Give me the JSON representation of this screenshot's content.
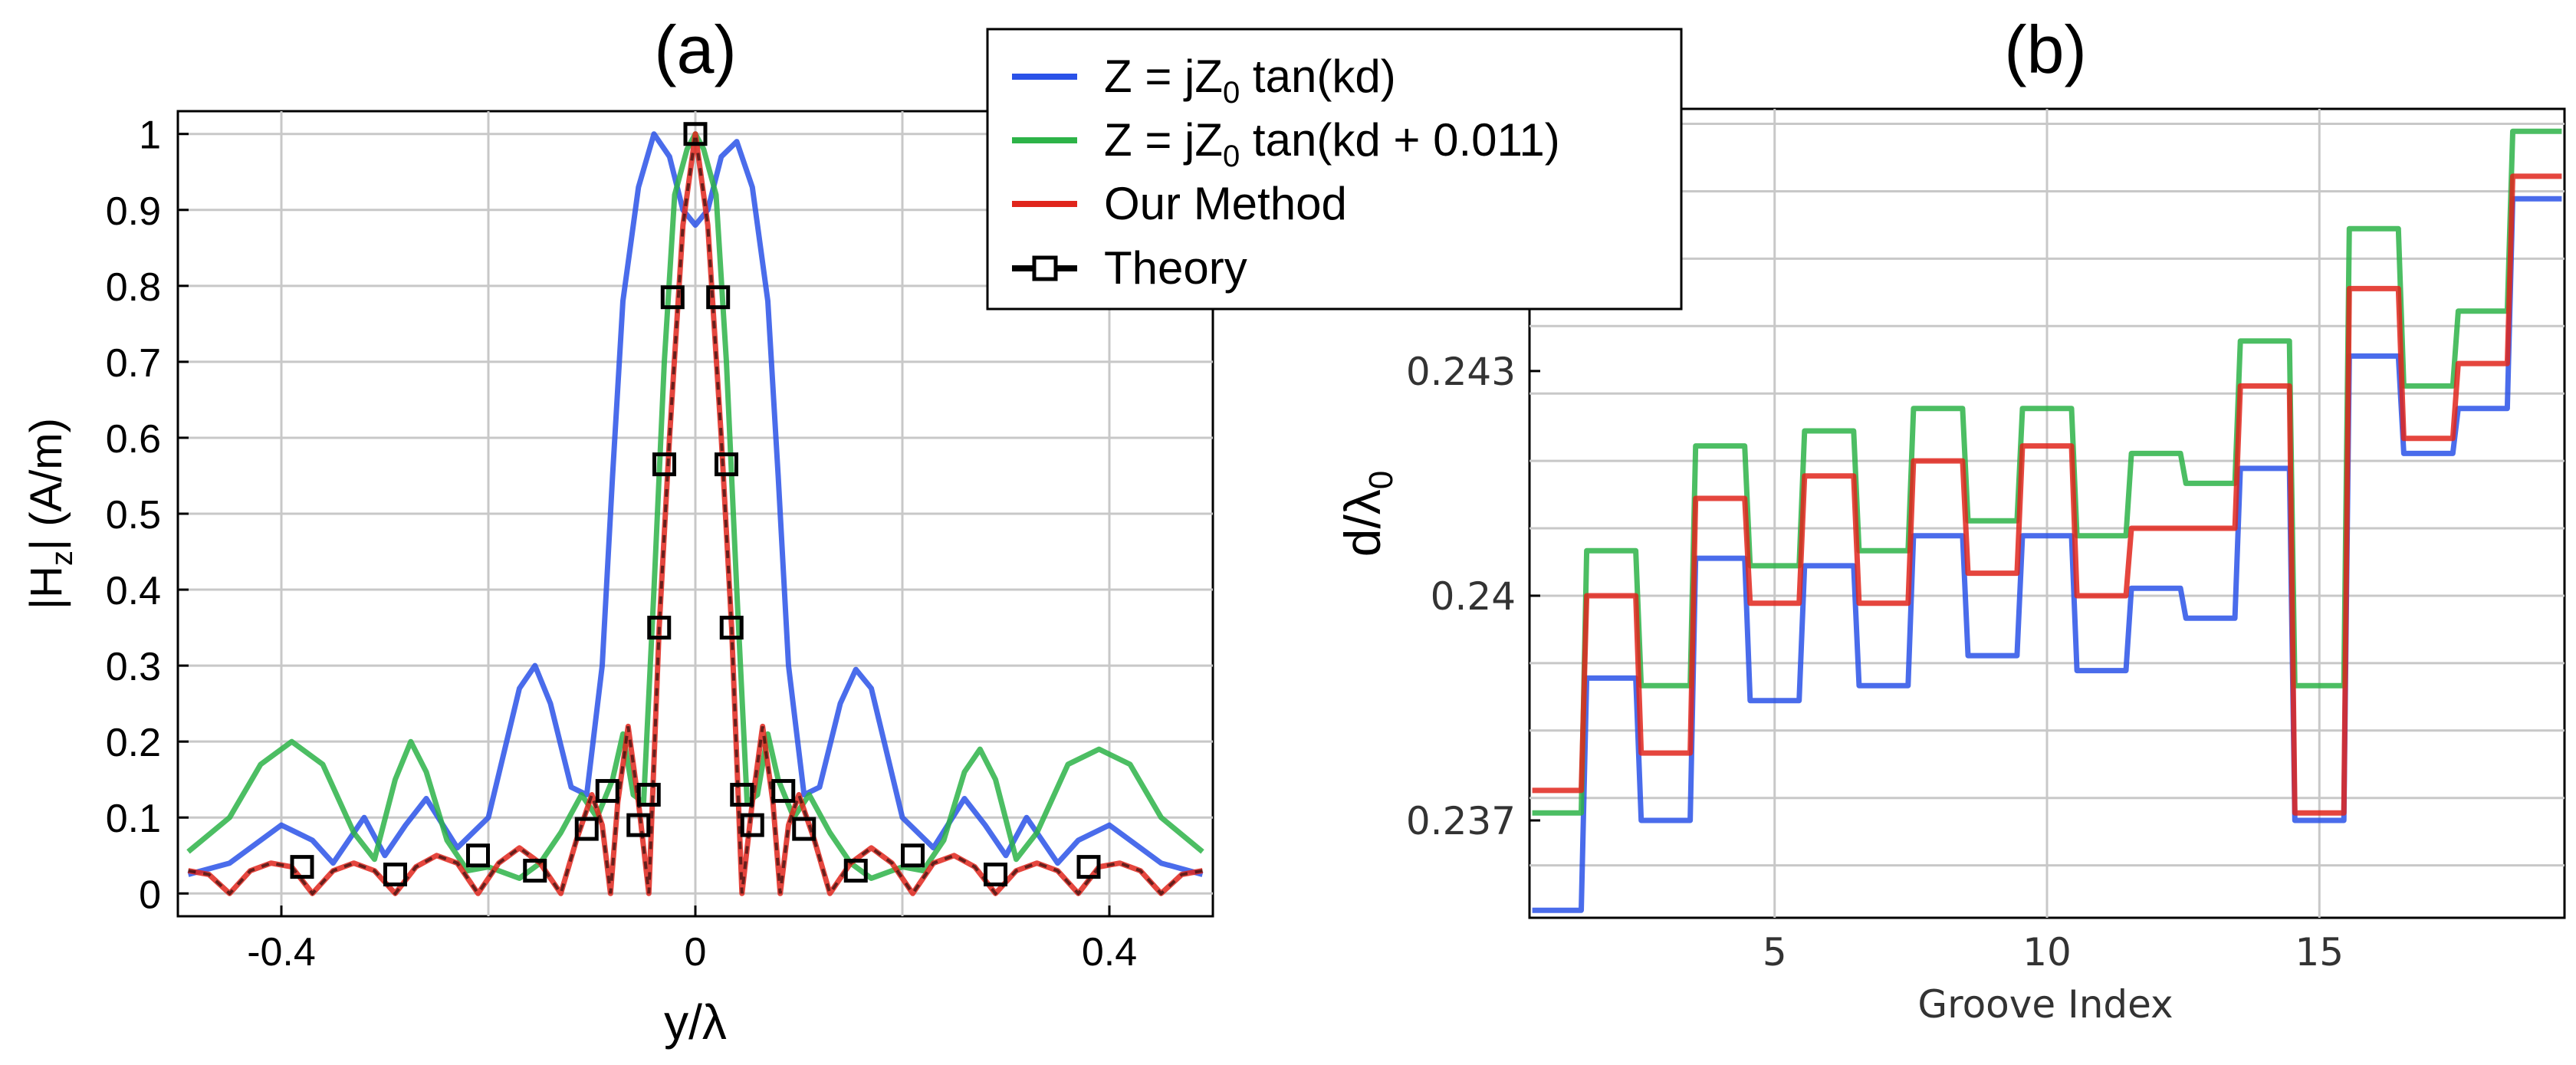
{
  "colors": {
    "blue": "#2a52e8",
    "green": "#2db348",
    "red": "#e0261c",
    "theory": "#000000",
    "grid": "#c8c8c8",
    "axis": "#000000"
  },
  "legend": {
    "entries": [
      {
        "key": "blue",
        "prefix": "Z = jZ",
        "sub": "0",
        "suffix": " tan(kd)"
      },
      {
        "key": "green",
        "prefix": "Z = jZ",
        "sub": "0",
        "suffix": " tan(kd + 0.011)"
      },
      {
        "key": "red",
        "prefix": "Our Method",
        "sub": "",
        "suffix": ""
      },
      {
        "key": "theory",
        "prefix": "Theory",
        "sub": "",
        "suffix": ""
      }
    ]
  },
  "chart_data": [
    {
      "type": "line",
      "title": "(a)",
      "xlabel": "y/λ",
      "ylabel_main": "|H",
      "ylabel_sub": "z",
      "ylabel_tail": "| (A/m)",
      "xlim": [
        -0.5,
        0.5
      ],
      "ylim": [
        -0.03,
        1.03
      ],
      "xticks": [
        -0.4,
        0,
        0.4
      ],
      "xtick_labels": [
        "-0.4",
        "0",
        "0.4"
      ],
      "xgrid": [
        -0.4,
        -0.2,
        0,
        0.2,
        0.4
      ],
      "yticks": [
        0,
        0.1,
        0.2,
        0.3,
        0.4,
        0.5,
        0.6,
        0.7,
        0.8,
        0.9,
        1
      ],
      "ytick_labels": [
        "0",
        "0.1",
        "0.2",
        "0.3",
        "0.4",
        "0.5",
        "0.6",
        "0.7",
        "0.8",
        "0.9",
        "1"
      ],
      "series": [
        {
          "name": "Z = jZ0 tan(kd)",
          "color_key": "blue",
          "points": [
            [
              -0.49,
              0.025
            ],
            [
              -0.45,
              0.04
            ],
            [
              -0.4,
              0.09
            ],
            [
              -0.37,
              0.07
            ],
            [
              -0.35,
              0.04
            ],
            [
              -0.32,
              0.1
            ],
            [
              -0.3,
              0.05
            ],
            [
              -0.28,
              0.09
            ],
            [
              -0.26,
              0.125
            ],
            [
              -0.23,
              0.06
            ],
            [
              -0.2,
              0.1
            ],
            [
              -0.17,
              0.27
            ],
            [
              -0.155,
              0.3
            ],
            [
              -0.14,
              0.25
            ],
            [
              -0.12,
              0.14
            ],
            [
              -0.105,
              0.13
            ],
            [
              -0.09,
              0.3
            ],
            [
              -0.08,
              0.55
            ],
            [
              -0.07,
              0.78
            ],
            [
              -0.055,
              0.93
            ],
            [
              -0.04,
              1.0
            ],
            [
              -0.025,
              0.97
            ],
            [
              -0.012,
              0.9
            ],
            [
              0,
              0.88
            ],
            [
              0.012,
              0.9
            ],
            [
              0.025,
              0.97
            ],
            [
              0.04,
              0.99
            ],
            [
              0.055,
              0.93
            ],
            [
              0.07,
              0.78
            ],
            [
              0.08,
              0.55
            ],
            [
              0.09,
              0.3
            ],
            [
              0.105,
              0.13
            ],
            [
              0.12,
              0.14
            ],
            [
              0.14,
              0.25
            ],
            [
              0.155,
              0.295
            ],
            [
              0.17,
              0.27
            ],
            [
              0.2,
              0.1
            ],
            [
              0.23,
              0.06
            ],
            [
              0.26,
              0.125
            ],
            [
              0.28,
              0.09
            ],
            [
              0.3,
              0.05
            ],
            [
              0.32,
              0.1
            ],
            [
              0.35,
              0.04
            ],
            [
              0.37,
              0.07
            ],
            [
              0.4,
              0.09
            ],
            [
              0.45,
              0.04
            ],
            [
              0.49,
              0.025
            ]
          ]
        },
        {
          "name": "Z = jZ0 tan(kd + 0.011)",
          "color_key": "green",
          "points": [
            [
              -0.49,
              0.055
            ],
            [
              -0.45,
              0.1
            ],
            [
              -0.42,
              0.17
            ],
            [
              -0.39,
              0.2
            ],
            [
              -0.36,
              0.17
            ],
            [
              -0.33,
              0.08
            ],
            [
              -0.31,
              0.045
            ],
            [
              -0.29,
              0.15
            ],
            [
              -0.275,
              0.2
            ],
            [
              -0.26,
              0.16
            ],
            [
              -0.24,
              0.07
            ],
            [
              -0.22,
              0.03
            ],
            [
              -0.2,
              0.035
            ],
            [
              -0.17,
              0.02
            ],
            [
              -0.15,
              0.04
            ],
            [
              -0.13,
              0.08
            ],
            [
              -0.11,
              0.13
            ],
            [
              -0.095,
              0.1
            ],
            [
              -0.08,
              0.15
            ],
            [
              -0.07,
              0.21
            ],
            [
              -0.06,
              0.13
            ],
            [
              -0.05,
              0.12
            ],
            [
              -0.04,
              0.4
            ],
            [
              -0.03,
              0.7
            ],
            [
              -0.02,
              0.92
            ],
            [
              -0.008,
              0.98
            ],
            [
              0,
              1.0
            ],
            [
              0.008,
              0.98
            ],
            [
              0.02,
              0.92
            ],
            [
              0.03,
              0.7
            ],
            [
              0.04,
              0.4
            ],
            [
              0.05,
              0.12
            ],
            [
              0.06,
              0.13
            ],
            [
              0.07,
              0.21
            ],
            [
              0.08,
              0.15
            ],
            [
              0.095,
              0.1
            ],
            [
              0.11,
              0.13
            ],
            [
              0.13,
              0.08
            ],
            [
              0.15,
              0.04
            ],
            [
              0.17,
              0.02
            ],
            [
              0.2,
              0.035
            ],
            [
              0.22,
              0.03
            ],
            [
              0.24,
              0.07
            ],
            [
              0.26,
              0.16
            ],
            [
              0.275,
              0.19
            ],
            [
              0.29,
              0.15
            ],
            [
              0.31,
              0.045
            ],
            [
              0.33,
              0.08
            ],
            [
              0.36,
              0.17
            ],
            [
              0.39,
              0.19
            ],
            [
              0.42,
              0.17
            ],
            [
              0.45,
              0.1
            ],
            [
              0.49,
              0.055
            ]
          ]
        },
        {
          "name": "Our Method",
          "color_key": "red",
          "points": [
            [
              -0.49,
              0.03
            ],
            [
              -0.47,
              0.025
            ],
            [
              -0.45,
              0.0
            ],
            [
              -0.43,
              0.03
            ],
            [
              -0.41,
              0.04
            ],
            [
              -0.39,
              0.035
            ],
            [
              -0.37,
              0.0
            ],
            [
              -0.35,
              0.03
            ],
            [
              -0.33,
              0.04
            ],
            [
              -0.31,
              0.03
            ],
            [
              -0.29,
              0.0
            ],
            [
              -0.27,
              0.035
            ],
            [
              -0.25,
              0.05
            ],
            [
              -0.23,
              0.04
            ],
            [
              -0.21,
              0.0
            ],
            [
              -0.19,
              0.04
            ],
            [
              -0.17,
              0.06
            ],
            [
              -0.15,
              0.04
            ],
            [
              -0.13,
              0.0
            ],
            [
              -0.115,
              0.07
            ],
            [
              -0.1,
              0.13
            ],
            [
              -0.09,
              0.09
            ],
            [
              -0.082,
              0.0
            ],
            [
              -0.075,
              0.12
            ],
            [
              -0.065,
              0.22
            ],
            [
              -0.055,
              0.12
            ],
            [
              -0.045,
              0.0
            ],
            [
              -0.035,
              0.35
            ],
            [
              -0.025,
              0.6
            ],
            [
              -0.012,
              0.88
            ],
            [
              0,
              1.0
            ],
            [
              0.012,
              0.88
            ],
            [
              0.025,
              0.6
            ],
            [
              0.035,
              0.35
            ],
            [
              0.045,
              0.0
            ],
            [
              0.055,
              0.12
            ],
            [
              0.065,
              0.22
            ],
            [
              0.075,
              0.12
            ],
            [
              0.082,
              0.0
            ],
            [
              0.09,
              0.09
            ],
            [
              0.1,
              0.13
            ],
            [
              0.115,
              0.07
            ],
            [
              0.13,
              0.0
            ],
            [
              0.15,
              0.04
            ],
            [
              0.17,
              0.06
            ],
            [
              0.19,
              0.04
            ],
            [
              0.21,
              0.0
            ],
            [
              0.23,
              0.04
            ],
            [
              0.25,
              0.05
            ],
            [
              0.27,
              0.035
            ],
            [
              0.29,
              0.0
            ],
            [
              0.31,
              0.03
            ],
            [
              0.33,
              0.04
            ],
            [
              0.35,
              0.03
            ],
            [
              0.37,
              0.0
            ],
            [
              0.39,
              0.035
            ],
            [
              0.41,
              0.04
            ],
            [
              0.43,
              0.03
            ],
            [
              0.45,
              0.0
            ],
            [
              0.47,
              0.025
            ],
            [
              0.49,
              0.03
            ]
          ]
        },
        {
          "name": "Theory",
          "color_key": "theory",
          "markers": [
            [
              -0.38,
              0.035
            ],
            [
              -0.29,
              0.025
            ],
            [
              -0.21,
              0.05
            ],
            [
              -0.155,
              0.03
            ],
            [
              -0.105,
              0.085
            ],
            [
              -0.085,
              0.135
            ],
            [
              -0.055,
              0.09
            ],
            [
              -0.045,
              0.13
            ],
            [
              -0.035,
              0.35
            ],
            [
              -0.03,
              0.565
            ],
            [
              -0.022,
              0.785
            ],
            [
              0,
              1.0
            ],
            [
              0.022,
              0.785
            ],
            [
              0.03,
              0.565
            ],
            [
              0.035,
              0.35
            ],
            [
              0.045,
              0.13
            ],
            [
              0.055,
              0.09
            ],
            [
              0.085,
              0.135
            ],
            [
              0.105,
              0.085
            ],
            [
              0.155,
              0.03
            ],
            [
              0.21,
              0.05
            ],
            [
              0.29,
              0.025
            ],
            [
              0.38,
              0.035
            ]
          ]
        }
      ]
    },
    {
      "type": "line",
      "title": "(b)",
      "xlabel": "Groove Index",
      "ylabel_main": "d/λ",
      "ylabel_sub": "0",
      "xlim": [
        0.5,
        19.5
      ],
      "ylim": [
        0.2357,
        0.2465
      ],
      "xticks": [
        5,
        10,
        15
      ],
      "xtick_labels": [
        "5",
        "10",
        "15"
      ],
      "xgrid": [
        5,
        10,
        15
      ],
      "ygrid": [
        0.2364,
        0.2373,
        0.2382,
        0.2391,
        0.24,
        0.2409,
        0.2418,
        0.2427,
        0.2436,
        0.2445,
        0.2454,
        0.2463
      ],
      "yticks": [
        0.237,
        0.24,
        0.243
      ],
      "ytick_labels": [
        "0.237",
        "0.24",
        "0.243"
      ],
      "series": [
        {
          "name": "Z = jZ0 tan(kd)",
          "color_key": "blue",
          "values": [
            0.2358,
            0.2389,
            0.237,
            0.2405,
            0.2386,
            0.2404,
            0.2388,
            0.2408,
            0.2392,
            0.2408,
            0.239,
            0.2401,
            0.2397,
            0.2417,
            0.237,
            0.2432,
            0.2419,
            0.2425,
            0.2453
          ]
        },
        {
          "name": "Z = jZ0 tan(kd + 0.011)",
          "color_key": "green",
          "values": [
            0.2371,
            0.2406,
            0.2388,
            0.242,
            0.2404,
            0.2422,
            0.2406,
            0.2425,
            0.241,
            0.2425,
            0.2408,
            0.2419,
            0.2415,
            0.2434,
            0.2388,
            0.2449,
            0.2428,
            0.2438,
            0.2462
          ]
        },
        {
          "name": "Our Method",
          "color_key": "red",
          "values": [
            0.2374,
            0.24,
            0.2379,
            0.2413,
            0.2399,
            0.2416,
            0.2399,
            0.2418,
            0.2403,
            0.242,
            0.24,
            0.2409,
            0.2409,
            0.2428,
            0.2371,
            0.2441,
            0.2421,
            0.2431,
            0.2456
          ]
        }
      ]
    }
  ]
}
